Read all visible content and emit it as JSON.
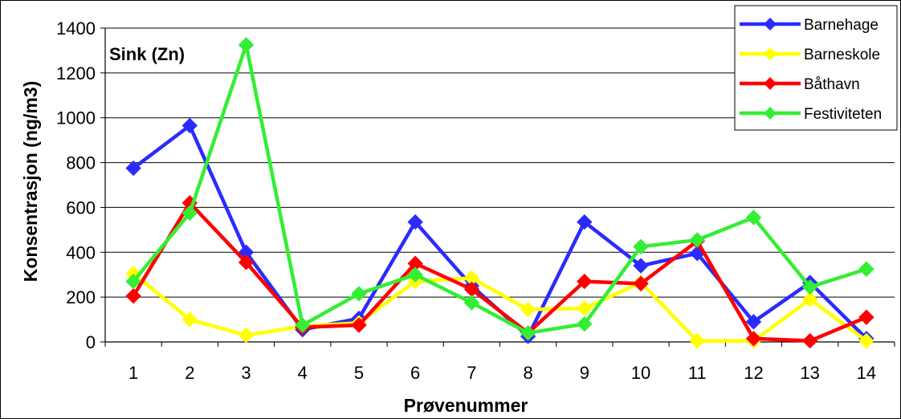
{
  "chart_data": {
    "type": "line",
    "title": "Sink (Zn)",
    "xlabel": "Prøvenummer",
    "ylabel": "Konsentrasjon (ng/m3)",
    "ylim": [
      0,
      1400
    ],
    "yticks": [
      0,
      200,
      400,
      600,
      800,
      1000,
      1200,
      1400
    ],
    "categories": [
      "1",
      "2",
      "3",
      "4",
      "5",
      "6",
      "7",
      "8",
      "9",
      "10",
      "11",
      "12",
      "13",
      "14"
    ],
    "grid": true,
    "legend_position": "top-right",
    "series": [
      {
        "name": "Barnehage",
        "color": "#2b2bff",
        "values": [
          775,
          965,
          400,
          55,
          105,
          535,
          250,
          25,
          535,
          340,
          395,
          90,
          265,
          15
        ]
      },
      {
        "name": "Barneskole",
        "color": "#ffff00",
        "values": [
          305,
          100,
          30,
          70,
          85,
          270,
          285,
          145,
          150,
          265,
          5,
          5,
          190,
          5
        ]
      },
      {
        "name": "Båthavn",
        "color": "#ff0000",
        "values": [
          205,
          620,
          355,
          65,
          75,
          350,
          235,
          40,
          270,
          260,
          450,
          15,
          5,
          110
        ]
      },
      {
        "name": "Festiviteten",
        "color": "#33ee33",
        "values": [
          270,
          575,
          1325,
          75,
          215,
          300,
          175,
          40,
          80,
          425,
          455,
          555,
          245,
          325
        ]
      }
    ]
  }
}
